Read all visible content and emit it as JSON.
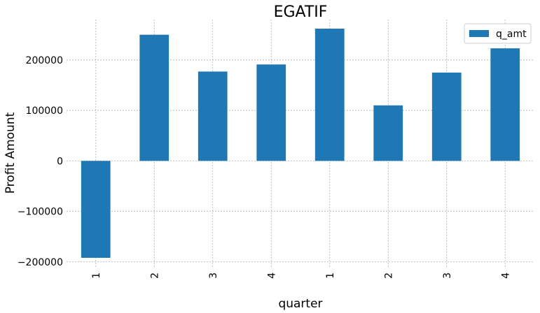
{
  "chart_data": {
    "type": "bar",
    "title": "EGATIF",
    "xlabel": "quarter",
    "ylabel": "Profit Amount",
    "categories": [
      "1",
      "2",
      "3",
      "4",
      "1",
      "2",
      "3",
      "4"
    ],
    "series": [
      {
        "name": "q_amt",
        "color": "#1f77b4",
        "values": [
          -192000,
          250000,
          177000,
          191000,
          262000,
          110000,
          175000,
          223000
        ]
      }
    ],
    "ylim": [
      -210000,
      280000
    ],
    "yticks": [
      -200000,
      -100000,
      0,
      100000,
      200000
    ],
    "ytick_labels": [
      "−200000",
      "−100000",
      "0",
      "100000",
      "200000"
    ],
    "grid": true,
    "legend_position": "top-right"
  }
}
